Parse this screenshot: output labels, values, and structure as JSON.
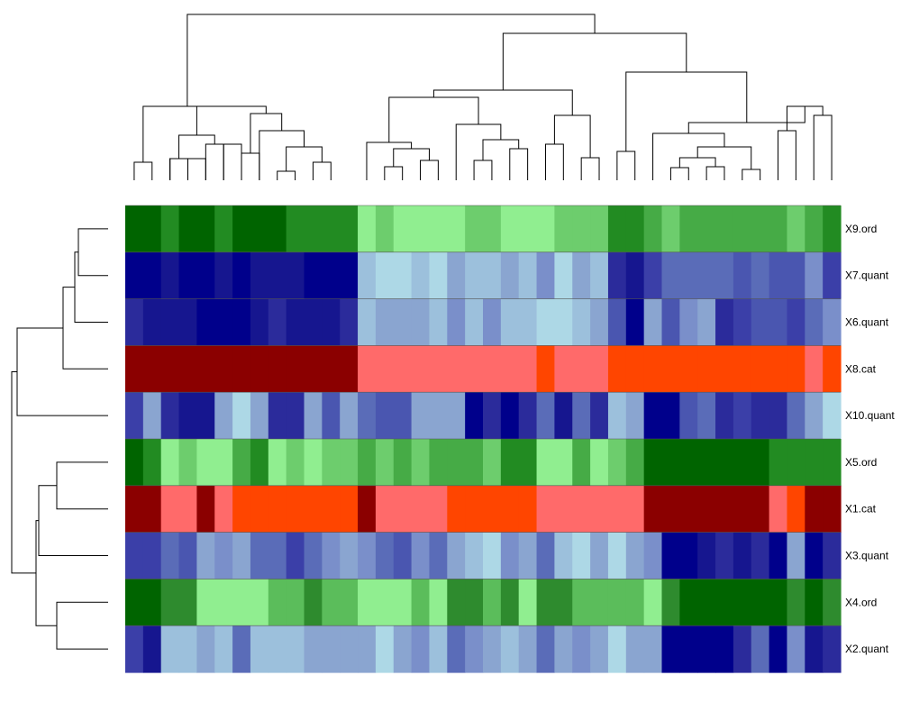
{
  "chart_data": {
    "type": "heatmap",
    "title": "",
    "xlabel": "",
    "ylabel": "",
    "n_columns": 40,
    "column_dendrogram": true,
    "row_dendrogram": true,
    "rows": [
      {
        "label": "X9.ord",
        "kind": "ord",
        "colors": [
          "#006400",
          "#006400",
          "#228b22",
          "#006400",
          "#006400",
          "#228b22",
          "#006400",
          "#006400",
          "#006400",
          "#228b22",
          "#228b22",
          "#228b22",
          "#228b22",
          "#90ee90",
          "#6dcd6d",
          "#90ee90",
          "#90ee90",
          "#90ee90",
          "#90ee90",
          "#6dcd6d",
          "#6dcd6d",
          "#90ee90",
          "#90ee90",
          "#90ee90",
          "#6dcd6d",
          "#6dcd6d",
          "#6dcd6d",
          "#228b22",
          "#228b22",
          "#46ab46",
          "#6dcd6d",
          "#46ab46",
          "#46ab46",
          "#46ab46",
          "#46ab46",
          "#46ab46",
          "#46ab46",
          "#6dcd6d",
          "#46ab46",
          "#228b22"
        ]
      },
      {
        "label": "X7.quant",
        "kind": "quant",
        "colors": [
          "#00008b",
          "#00008b",
          "#16168f",
          "#00008b",
          "#00008b",
          "#16168f",
          "#00008b",
          "#16168f",
          "#16168f",
          "#16168f",
          "#00008b",
          "#00008b",
          "#00008b",
          "#9cc0dc",
          "#add8e6",
          "#add8e6",
          "#9cc0dc",
          "#add8e6",
          "#8aa5d0",
          "#9cc0dc",
          "#9cc0dc",
          "#8aa5d0",
          "#9cc0dc",
          "#7a8fca",
          "#add8e6",
          "#8aa5d0",
          "#9cc0dc",
          "#2b2b9b",
          "#16168f",
          "#3b3fa8",
          "#5a6cb8",
          "#5a6cb8",
          "#5a6cb8",
          "#5a6cb8",
          "#4a56b0",
          "#5a6cb8",
          "#4a56b0",
          "#4a56b0",
          "#7a8fca",
          "#3b3fa8"
        ]
      },
      {
        "label": "X6.quant",
        "kind": "quant",
        "colors": [
          "#2b2b9b",
          "#16168f",
          "#16168f",
          "#16168f",
          "#00008b",
          "#00008b",
          "#00008b",
          "#16168f",
          "#2b2b9b",
          "#16168f",
          "#16168f",
          "#16168f",
          "#2b2b9b",
          "#9cc0dc",
          "#8aa5d0",
          "#8aa5d0",
          "#8aa5d0",
          "#9cc0dc",
          "#7a8fca",
          "#9cc0dc",
          "#7a8fca",
          "#9cc0dc",
          "#9cc0dc",
          "#add8e6",
          "#add8e6",
          "#9cc0dc",
          "#8aa5d0",
          "#4a56b0",
          "#00008b",
          "#8aa5d0",
          "#4a56b0",
          "#7a8fca",
          "#8aa5d0",
          "#2b2b9b",
          "#3b3fa8",
          "#4a56b0",
          "#4a56b0",
          "#3b3fa8",
          "#5a6cb8",
          "#7a8fca"
        ]
      },
      {
        "label": "X8.cat",
        "kind": "cat",
        "colors": [
          "#8b0000",
          "#8b0000",
          "#8b0000",
          "#8b0000",
          "#8b0000",
          "#8b0000",
          "#8b0000",
          "#8b0000",
          "#8b0000",
          "#8b0000",
          "#8b0000",
          "#8b0000",
          "#8b0000",
          "#ff6a6a",
          "#ff6a6a",
          "#ff6a6a",
          "#ff6a6a",
          "#ff6a6a",
          "#ff6a6a",
          "#ff6a6a",
          "#ff6a6a",
          "#ff6a6a",
          "#ff6a6a",
          "#ff4500",
          "#ff6a6a",
          "#ff6a6a",
          "#ff6a6a",
          "#ff4500",
          "#ff4500",
          "#ff4500",
          "#ff4500",
          "#ff4500",
          "#ff4500",
          "#ff4500",
          "#ff4500",
          "#ff4500",
          "#ff4500",
          "#ff4500",
          "#ff6a6a",
          "#ff4500"
        ]
      },
      {
        "label": "X10.quant",
        "kind": "quant",
        "colors": [
          "#3b3fa8",
          "#8aa5d0",
          "#2b2b9b",
          "#16168f",
          "#16168f",
          "#8aa5d0",
          "#add8e6",
          "#8aa5d0",
          "#2b2b9b",
          "#2b2b9b",
          "#8aa5d0",
          "#4a56b0",
          "#8aa5d0",
          "#5a6cb8",
          "#4a56b0",
          "#4a56b0",
          "#8aa5d0",
          "#8aa5d0",
          "#8aa5d0",
          "#00008b",
          "#2b2b9b",
          "#00008b",
          "#2b2b9b",
          "#5a6cb8",
          "#16168f",
          "#5a6cb8",
          "#2b2b9b",
          "#9cc0dc",
          "#8aa5d0",
          "#00008b",
          "#00008b",
          "#4a56b0",
          "#5a6cb8",
          "#2b2b9b",
          "#3b3fa8",
          "#2b2b9b",
          "#2b2b9b",
          "#5a6cb8",
          "#8aa5d0",
          "#add8e6"
        ]
      },
      {
        "label": "X5.ord",
        "kind": "ord",
        "colors": [
          "#006400",
          "#228b22",
          "#90ee90",
          "#6dcd6d",
          "#90ee90",
          "#90ee90",
          "#46ab46",
          "#228b22",
          "#90ee90",
          "#6dcd6d",
          "#90ee90",
          "#6dcd6d",
          "#6dcd6d",
          "#46ab46",
          "#6dcd6d",
          "#46ab46",
          "#6dcd6d",
          "#46ab46",
          "#46ab46",
          "#46ab46",
          "#6dcd6d",
          "#228b22",
          "#228b22",
          "#90ee90",
          "#90ee90",
          "#46ab46",
          "#90ee90",
          "#6dcd6d",
          "#46ab46",
          "#006400",
          "#006400",
          "#006400",
          "#006400",
          "#006400",
          "#006400",
          "#006400",
          "#228b22",
          "#228b22",
          "#228b22",
          "#228b22"
        ]
      },
      {
        "label": "X1.cat",
        "kind": "cat",
        "colors": [
          "#8b0000",
          "#8b0000",
          "#ff6a6a",
          "#ff6a6a",
          "#8b0000",
          "#ff6a6a",
          "#ff4500",
          "#ff4500",
          "#ff4500",
          "#ff4500",
          "#ff4500",
          "#ff4500",
          "#ff4500",
          "#8b0000",
          "#ff6a6a",
          "#ff6a6a",
          "#ff6a6a",
          "#ff6a6a",
          "#ff4500",
          "#ff4500",
          "#ff4500",
          "#ff4500",
          "#ff4500",
          "#ff6a6a",
          "#ff6a6a",
          "#ff6a6a",
          "#ff6a6a",
          "#ff6a6a",
          "#ff6a6a",
          "#8b0000",
          "#8b0000",
          "#8b0000",
          "#8b0000",
          "#8b0000",
          "#8b0000",
          "#8b0000",
          "#ff6a6a",
          "#ff4500",
          "#8b0000",
          "#8b0000"
        ]
      },
      {
        "label": "X3.quant",
        "kind": "quant",
        "colors": [
          "#3b3fa8",
          "#3b3fa8",
          "#5a6cb8",
          "#4a56b0",
          "#8aa5d0",
          "#7a8fca",
          "#8aa5d0",
          "#5a6cb8",
          "#5a6cb8",
          "#3b3fa8",
          "#5a6cb8",
          "#7a8fca",
          "#8aa5d0",
          "#7a8fca",
          "#5a6cb8",
          "#4a56b0",
          "#7a8fca",
          "#5a6cb8",
          "#8aa5d0",
          "#9cc0dc",
          "#add8e6",
          "#7a8fca",
          "#8aa5d0",
          "#5a6cb8",
          "#9cc0dc",
          "#add8e6",
          "#8aa5d0",
          "#add8e6",
          "#8aa5d0",
          "#7a8fca",
          "#00008b",
          "#00008b",
          "#16168f",
          "#2b2b9b",
          "#16168f",
          "#2b2b9b",
          "#00008b",
          "#8aa5d0",
          "#00008b",
          "#2b2b9b"
        ]
      },
      {
        "label": "X4.ord",
        "kind": "ord",
        "colors": [
          "#006400",
          "#006400",
          "#2e8b2e",
          "#2e8b2e",
          "#90ee90",
          "#90ee90",
          "#90ee90",
          "#90ee90",
          "#5bbd5b",
          "#5bbd5b",
          "#2e8b2e",
          "#5bbd5b",
          "#5bbd5b",
          "#90ee90",
          "#90ee90",
          "#90ee90",
          "#5bbd5b",
          "#90ee90",
          "#2e8b2e",
          "#2e8b2e",
          "#5bbd5b",
          "#2e8b2e",
          "#90ee90",
          "#2e8b2e",
          "#2e8b2e",
          "#5bbd5b",
          "#5bbd5b",
          "#5bbd5b",
          "#5bbd5b",
          "#90ee90",
          "#2e8b2e",
          "#006400",
          "#006400",
          "#006400",
          "#006400",
          "#006400",
          "#006400",
          "#2e8b2e",
          "#006400",
          "#2e8b2e"
        ]
      },
      {
        "label": "X2.quant",
        "kind": "quant",
        "colors": [
          "#3b3fa8",
          "#16168f",
          "#9cc0dc",
          "#9cc0dc",
          "#8aa5d0",
          "#9cc0dc",
          "#5a6cb8",
          "#9cc0dc",
          "#9cc0dc",
          "#9cc0dc",
          "#8aa5d0",
          "#8aa5d0",
          "#8aa5d0",
          "#8aa5d0",
          "#add8e6",
          "#8aa5d0",
          "#7a8fca",
          "#9cc0dc",
          "#5a6cb8",
          "#7a8fca",
          "#8aa5d0",
          "#9cc0dc",
          "#8aa5d0",
          "#5a6cb8",
          "#8aa5d0",
          "#7a8fca",
          "#8aa5d0",
          "#add8e6",
          "#8aa5d0",
          "#8aa5d0",
          "#00008b",
          "#00008b",
          "#00008b",
          "#00008b",
          "#2b2b9b",
          "#5a6cb8",
          "#00008b",
          "#7a8fca",
          "#16168f",
          "#2b2b9b"
        ]
      }
    ]
  }
}
